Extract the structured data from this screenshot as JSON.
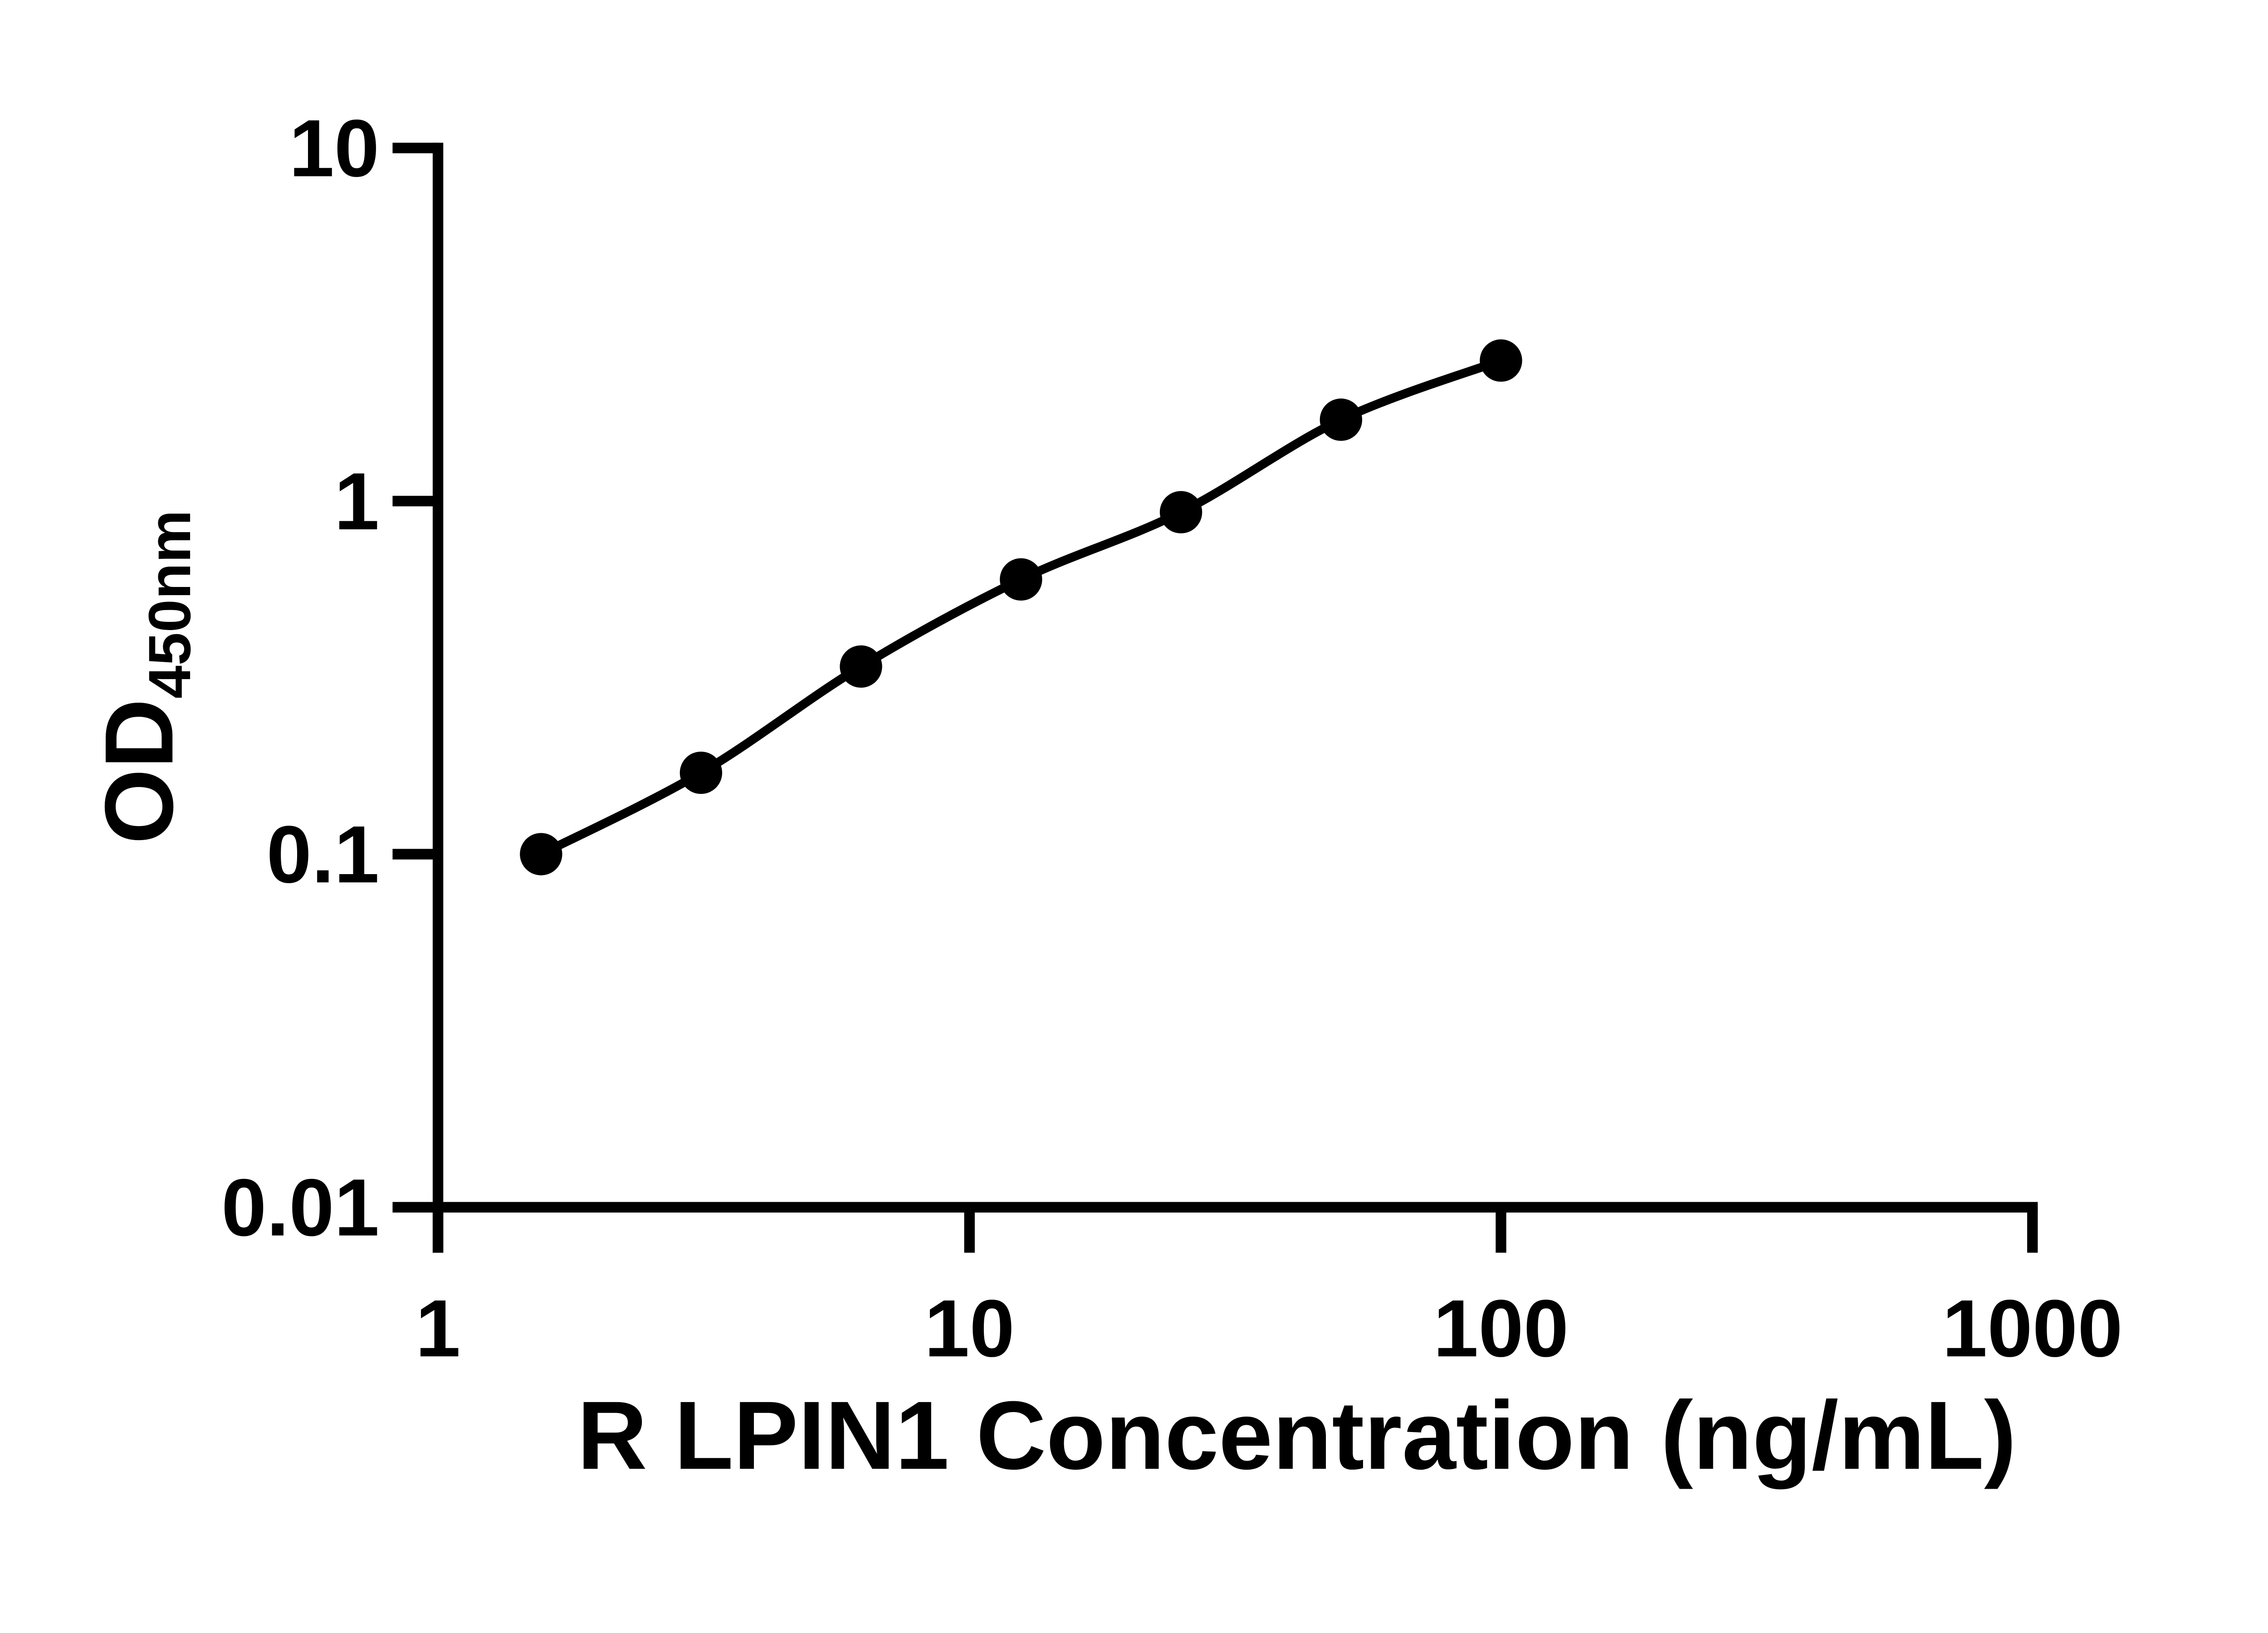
{
  "page": {
    "background_color": "#ffffff",
    "foreground_color": "#000000"
  },
  "chart_data": {
    "type": "scatter",
    "title": "",
    "xlabel": "R LPIN1 Concentration (ng/mL)",
    "ylabel_main": "OD",
    "ylabel_sub": "450nm",
    "x_scale": "log",
    "y_scale": "log",
    "xlim": [
      1,
      1000
    ],
    "ylim": [
      0.01,
      10
    ],
    "grid": false,
    "legend": "none",
    "line_color": "#000000",
    "marker_color": "#000000",
    "marker": "circle",
    "x_ticks": [
      {
        "value": 1,
        "label": "1"
      },
      {
        "value": 10,
        "label": "10"
      },
      {
        "value": 100,
        "label": "100"
      },
      {
        "value": 1000,
        "label": "1000"
      }
    ],
    "y_ticks": [
      {
        "value": 10,
        "label": "10"
      },
      {
        "value": 1,
        "label": "1"
      },
      {
        "value": 0.1,
        "label": "0.1"
      },
      {
        "value": 0.01,
        "label": "0.01"
      }
    ],
    "series": [
      {
        "points": [
          {
            "x": 1.563,
            "y": 0.1
          },
          {
            "x": 3.125,
            "y": 0.17
          },
          {
            "x": 6.25,
            "y": 0.34
          },
          {
            "x": 12.5,
            "y": 0.6
          },
          {
            "x": 25,
            "y": 0.93
          },
          {
            "x": 50,
            "y": 1.7
          },
          {
            "x": 100,
            "y": 2.5
          }
        ]
      }
    ]
  }
}
